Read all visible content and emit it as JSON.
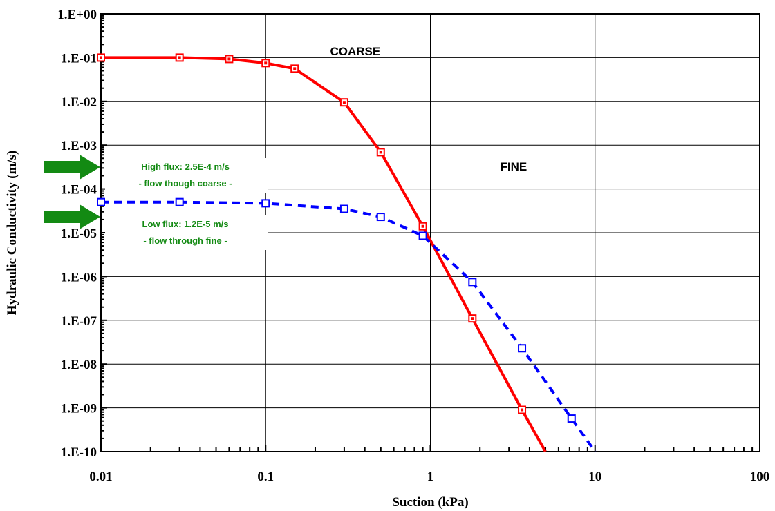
{
  "chart_data": {
    "type": "line",
    "xlabel": "Suction (kPa)",
    "ylabel": "Hydraulic Conductivity (m/s)",
    "x_scale": "log",
    "y_scale": "log",
    "xlim": [
      0.01,
      100
    ],
    "ylim": [
      1e-10,
      1
    ],
    "x_ticks": [
      0.01,
      0.1,
      1,
      10,
      100
    ],
    "x_tick_labels": [
      "0.01",
      "0.1",
      "1",
      "10",
      "100"
    ],
    "y_ticks": [
      1,
      0.1,
      0.01,
      0.001,
      0.0001,
      1e-05,
      1e-06,
      1e-07,
      1e-08,
      1e-09,
      1e-10
    ],
    "y_tick_labels": [
      "1.E+00",
      "1.E-01",
      "1.E-02",
      "1.E-03",
      "1.E-04",
      "1.E-05",
      "1.E-06",
      "1.E-07",
      "1.E-08",
      "1.E-09",
      "1.E-10"
    ],
    "grid": true,
    "legend": "none",
    "series": [
      {
        "label": "COARSE",
        "color": "#ff0000",
        "line_style": "solid",
        "marker": "square",
        "x": [
          0.01,
          0.03,
          0.06,
          0.1,
          0.15,
          0.3,
          0.5,
          0.9,
          1.8,
          3.6
        ],
        "y": [
          0.1,
          0.1,
          0.093,
          0.075,
          0.056,
          0.0095,
          0.00069,
          1.4e-05,
          1.1e-07,
          9e-10
        ],
        "line_end": [
          5,
          1e-10
        ]
      },
      {
        "label": "FINE",
        "color": "#0000ff",
        "line_style": "dashed",
        "marker": "open-square",
        "x": [
          0.01,
          0.03,
          0.1,
          0.3,
          0.5,
          0.9,
          1.8,
          3.6,
          7.2
        ],
        "y": [
          5e-05,
          5e-05,
          4.7e-05,
          3.5e-05,
          2.3e-05,
          8.5e-06,
          7.5e-07,
          2.3e-08,
          5.7e-10
        ],
        "line_end": [
          10,
          1e-10
        ]
      }
    ],
    "annotations": [
      {
        "text": "COARSE",
        "x": 0.35,
        "y": 0.1
      },
      {
        "text": "FINE",
        "x": 3.2,
        "y": 0.00038
      },
      {
        "lines": [
          "High  flux: 2.5E-4 m/s",
          "- flow though coarse -"
        ],
        "color": "#138a13",
        "arrow_at_y": 0.00025
      },
      {
        "lines": [
          "Low flux: 1.2E-5 m/s",
          "- flow through fine -"
        ],
        "color": "#138a13",
        "arrow_at_y": 1.2e-05
      }
    ]
  }
}
